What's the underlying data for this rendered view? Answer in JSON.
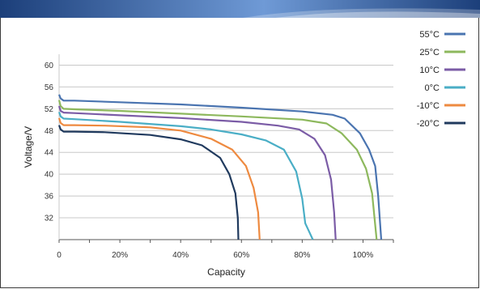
{
  "colors": {
    "banner_dark": "#1c3f7a",
    "banner_light": "#6f9ad6",
    "grid": "#c8c8c8",
    "axis": "#555555"
  },
  "chart_data": {
    "type": "line",
    "title": "",
    "xlabel": "Capacity",
    "ylabel": "Voltage/V",
    "xlim": [
      0,
      1.1
    ],
    "ylim": [
      28,
      62
    ],
    "x_ticks": [
      0,
      0.2,
      0.4,
      0.6,
      0.8,
      1.0
    ],
    "x_tick_labels": [
      "0",
      "20%",
      "40%",
      "60%",
      "80%",
      "100%"
    ],
    "y_ticks": [
      32,
      36,
      40,
      44,
      48,
      52,
      56,
      60
    ],
    "y_tick_labels": [
      "32",
      "36",
      "40",
      "44",
      "48",
      "52",
      "56",
      "60"
    ],
    "grid": "horizontal",
    "legend_position": "top-right",
    "series": [
      {
        "name": "55°C",
        "color": "#4a74b0",
        "points": [
          [
            0,
            54.6
          ],
          [
            0.005,
            53.9
          ],
          [
            0.015,
            53.5
          ],
          [
            0.05,
            53.5
          ],
          [
            0.2,
            53.2
          ],
          [
            0.4,
            52.8
          ],
          [
            0.6,
            52.2
          ],
          [
            0.8,
            51.5
          ],
          [
            0.9,
            50.9
          ],
          [
            0.94,
            50.2
          ],
          [
            0.99,
            47.5
          ],
          [
            1.02,
            44.5
          ],
          [
            1.04,
            41.5
          ],
          [
            1.05,
            36.0
          ],
          [
            1.06,
            28.0
          ]
        ]
      },
      {
        "name": "25°C",
        "color": "#8db85d",
        "points": [
          [
            0,
            53.6
          ],
          [
            0.005,
            52.5
          ],
          [
            0.015,
            52.0
          ],
          [
            0.05,
            51.9
          ],
          [
            0.2,
            51.6
          ],
          [
            0.4,
            51.1
          ],
          [
            0.6,
            50.6
          ],
          [
            0.8,
            50.0
          ],
          [
            0.88,
            49.3
          ],
          [
            0.93,
            47.5
          ],
          [
            0.98,
            44.5
          ],
          [
            1.01,
            41.0
          ],
          [
            1.03,
            36.5
          ],
          [
            1.045,
            28.0
          ]
        ]
      },
      {
        "name": "10°C",
        "color": "#7b5ca6",
        "points": [
          [
            0,
            52.5
          ],
          [
            0.005,
            51.6
          ],
          [
            0.015,
            51.3
          ],
          [
            0.05,
            51.2
          ],
          [
            0.2,
            50.8
          ],
          [
            0.4,
            50.3
          ],
          [
            0.6,
            49.6
          ],
          [
            0.72,
            48.9
          ],
          [
            0.79,
            48.2
          ],
          [
            0.84,
            46.5
          ],
          [
            0.875,
            43.5
          ],
          [
            0.895,
            39.0
          ],
          [
            0.905,
            33.0
          ],
          [
            0.91,
            28.0
          ]
        ]
      },
      {
        "name": "0°C",
        "color": "#4aaec6",
        "points": [
          [
            0,
            51.4
          ],
          [
            0.005,
            50.6
          ],
          [
            0.015,
            50.2
          ],
          [
            0.05,
            50.1
          ],
          [
            0.2,
            49.6
          ],
          [
            0.4,
            48.8
          ],
          [
            0.5,
            48.2
          ],
          [
            0.6,
            47.3
          ],
          [
            0.68,
            46.2
          ],
          [
            0.74,
            44.5
          ],
          [
            0.78,
            40.5
          ],
          [
            0.8,
            35.5
          ],
          [
            0.81,
            31.0
          ],
          [
            0.835,
            28.0
          ]
        ]
      },
      {
        "name": "-10°C",
        "color": "#ee8a40",
        "points": [
          [
            0,
            50.3
          ],
          [
            0.005,
            49.4
          ],
          [
            0.015,
            49.0
          ],
          [
            0.05,
            49.0
          ],
          [
            0.15,
            48.9
          ],
          [
            0.3,
            48.6
          ],
          [
            0.4,
            48.0
          ],
          [
            0.5,
            46.5
          ],
          [
            0.57,
            44.5
          ],
          [
            0.615,
            41.5
          ],
          [
            0.64,
            37.5
          ],
          [
            0.655,
            33.0
          ],
          [
            0.66,
            28.0
          ]
        ]
      },
      {
        "name": "-20°C",
        "color": "#203a5e",
        "points": [
          [
            0,
            49.0
          ],
          [
            0.005,
            48.2
          ],
          [
            0.015,
            47.8
          ],
          [
            0.05,
            47.8
          ],
          [
            0.15,
            47.7
          ],
          [
            0.3,
            47.2
          ],
          [
            0.4,
            46.4
          ],
          [
            0.47,
            45.3
          ],
          [
            0.53,
            43.0
          ],
          [
            0.56,
            40.0
          ],
          [
            0.58,
            36.5
          ],
          [
            0.588,
            32.0
          ],
          [
            0.59,
            28.0
          ]
        ]
      }
    ]
  }
}
